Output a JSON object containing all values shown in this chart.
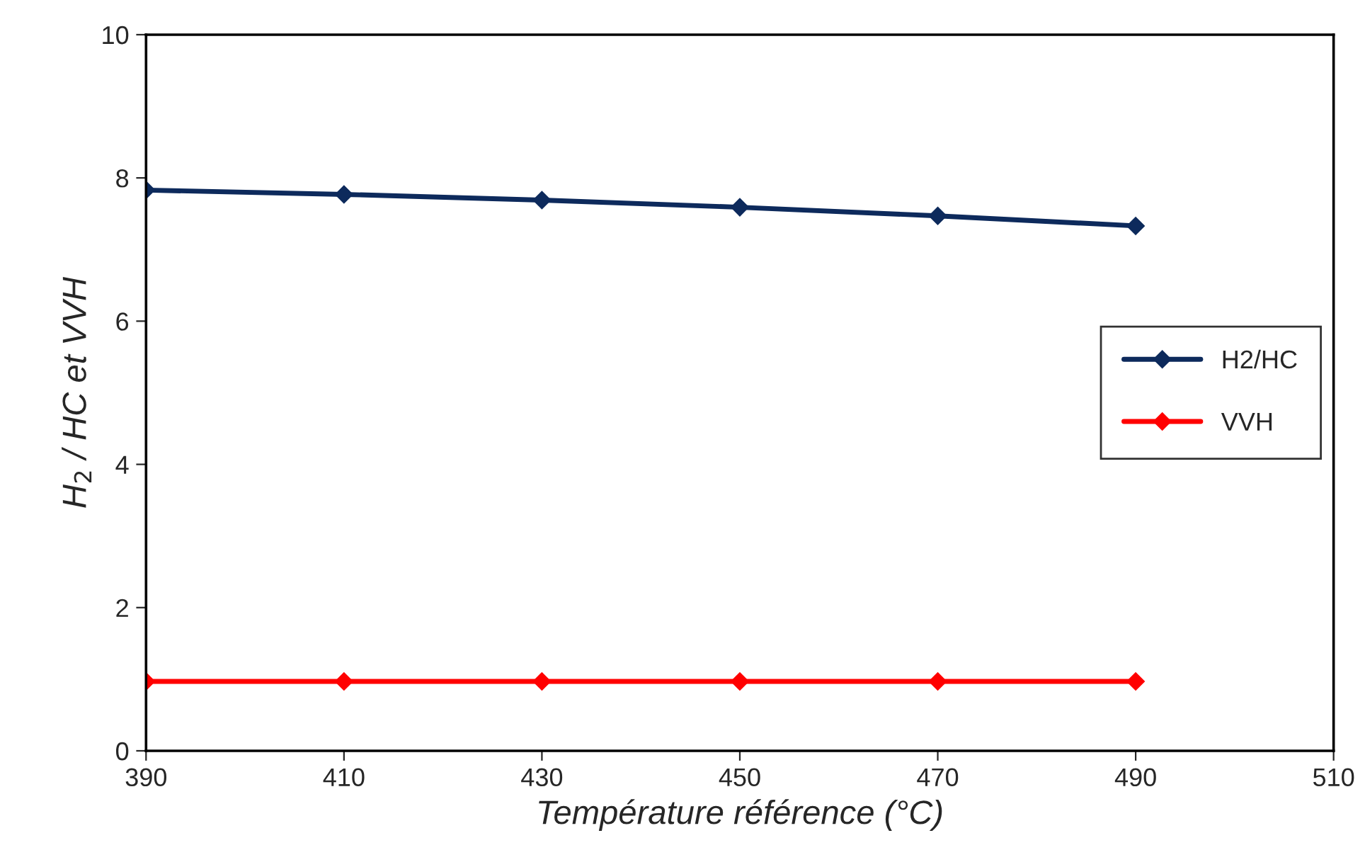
{
  "chart_data": {
    "type": "line",
    "xlabel": "Température référence (°C)",
    "ylabel": "H$_{2}$ / HC et VVH",
    "x": [
      390,
      410,
      430,
      450,
      470,
      490
    ],
    "series": [
      {
        "name": "H2/HC",
        "color": "#0d2a5c",
        "values": [
          7.83,
          7.77,
          7.69,
          7.59,
          7.47,
          7.33
        ]
      },
      {
        "name": "VVH",
        "color": "#ff0000",
        "values": [
          0.97,
          0.97,
          0.97,
          0.97,
          0.97,
          0.97
        ]
      }
    ],
    "xlim": [
      390,
      510
    ],
    "xticks": [
      390,
      410,
      430,
      450,
      470,
      490,
      510
    ],
    "ylim": [
      0,
      10
    ],
    "yticks": [
      0,
      2,
      4,
      6,
      8,
      10
    ],
    "marker": "diamond",
    "line_style": "solid",
    "grid": false,
    "legend": "right"
  }
}
